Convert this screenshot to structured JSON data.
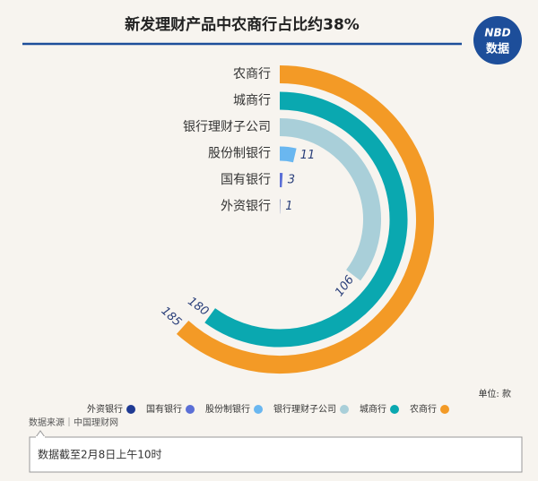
{
  "chart_data": {
    "type": "radial_bar",
    "title": "新发理财产品中农商行占比约38%",
    "logo": {
      "top": "NBD",
      "bottom": "数据"
    },
    "categories": [
      "农商行",
      "城商行",
      "银行理财子公司",
      "股份制银行",
      "国有银行",
      "外资银行"
    ],
    "values": [
      185,
      180,
      106,
      11,
      3,
      1
    ],
    "colors": [
      "#f39a26",
      "#0aa8b0",
      "#a9cfd9",
      "#6ab7f0",
      "#5b6fd6",
      "#1f3a93"
    ],
    "xlim": [
      0,
      300
    ],
    "unit": "单位: 款",
    "source": "数据来源｜中国理财网",
    "note": "数据截至2月8日上午10时"
  }
}
